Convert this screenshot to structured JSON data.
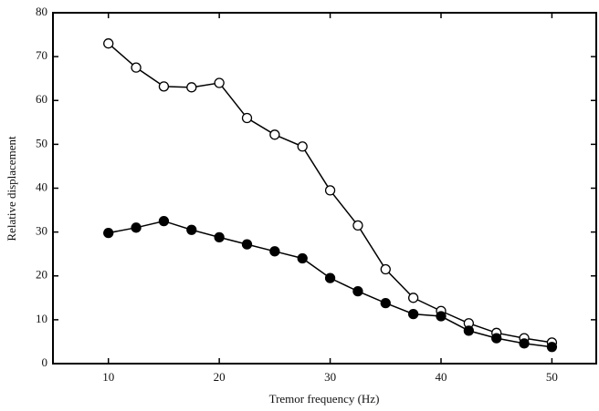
{
  "chart_data": {
    "type": "line",
    "xlabel": "Tremor frequency (Hz)",
    "ylabel": "Relative displacement",
    "x": [
      10,
      12.5,
      15,
      17.5,
      20,
      22.5,
      25,
      27.5,
      30,
      32.5,
      35,
      37.5,
      40,
      42.5,
      45,
      47.5,
      50
    ],
    "series": [
      {
        "color": "#000000",
        "marker_fill": "#ffffff",
        "values": [
          73,
          67.5,
          63.2,
          63,
          64,
          56,
          52.2,
          49.5,
          39.5,
          31.5,
          21.5,
          15,
          12,
          9.2,
          7,
          5.8,
          4.8
        ]
      },
      {
        "color": "#000000",
        "marker_fill": "#000000",
        "values": [
          29.8,
          31,
          32.5,
          30.5,
          28.8,
          27.2,
          25.6,
          24,
          19.5,
          16.5,
          13.8,
          11.3,
          10.8,
          7.5,
          5.8,
          4.6,
          3.8
        ]
      }
    ],
    "xlim": [
      5,
      54
    ],
    "ylim": [
      0,
      80
    ],
    "xticks": [
      10,
      20,
      30,
      40,
      50
    ],
    "yticks": [
      0,
      10,
      20,
      30,
      40,
      50,
      60,
      70,
      80
    ],
    "grid": false
  }
}
